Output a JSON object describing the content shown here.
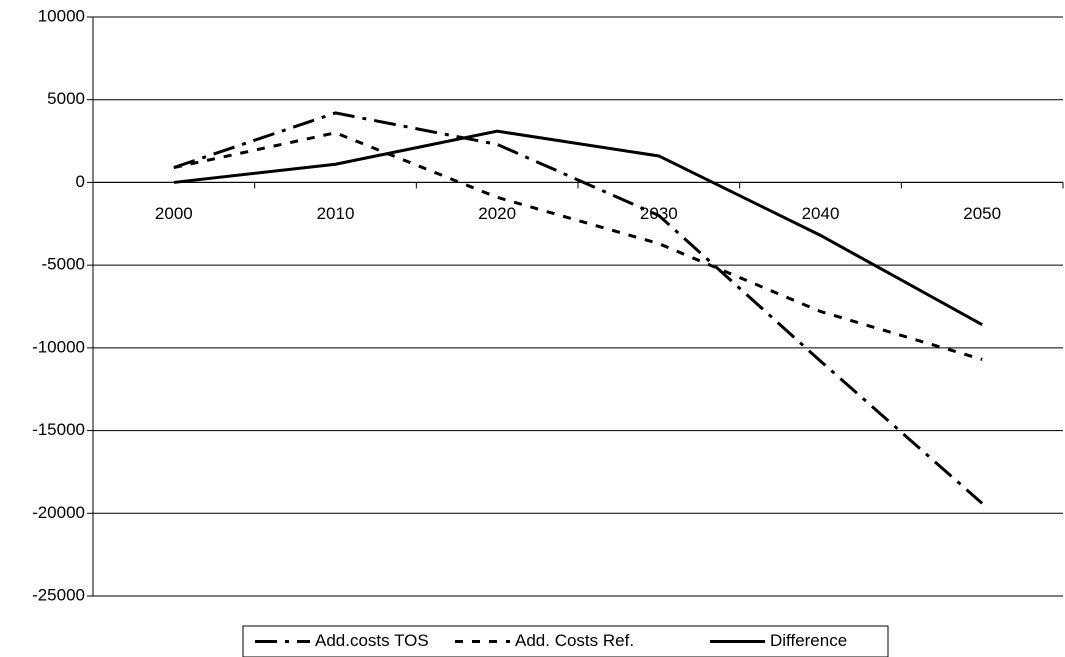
{
  "chart_data": {
    "type": "line",
    "categories": [
      "2000",
      "2010",
      "2020",
      "2030",
      "2040",
      "2050"
    ],
    "series": [
      {
        "name": "Add.costs TOS",
        "color": "#000000",
        "dash": "22,8,4,8",
        "values": [
          900,
          4200,
          2300,
          -2000,
          -10800,
          -19400
        ]
      },
      {
        "name": "Add. Costs Ref.",
        "color": "#000000",
        "dash": "8,9",
        "values": [
          900,
          3000,
          -900,
          -3700,
          -7800,
          -10700
        ]
      },
      {
        "name": "Difference",
        "color": "#000000",
        "dash": "none",
        "values": [
          0,
          1100,
          3100,
          1600,
          -3200,
          -8600
        ]
      }
    ],
    "ylim": [
      -25000,
      10000
    ],
    "yticks": [
      -25000,
      -20000,
      -15000,
      -10000,
      -5000,
      0,
      5000,
      10000
    ],
    "grid": true,
    "legend": "bottom"
  }
}
